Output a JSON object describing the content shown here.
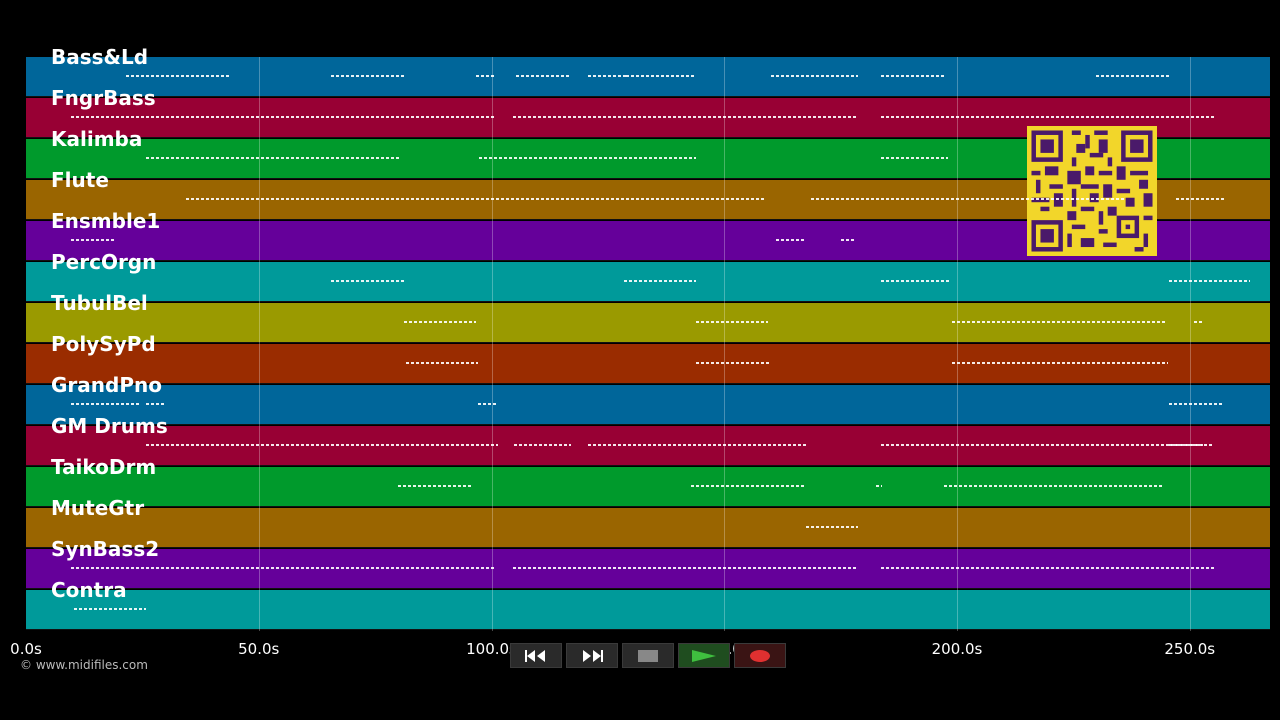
{
  "copyright": "© www.midifiles.com",
  "tracks": [
    {
      "name": "Bass&Ld",
      "color": "#00669a"
    },
    {
      "name": "FngrBass",
      "color": "#980034"
    },
    {
      "name": "Kalimba",
      "color": "#009a2c"
    },
    {
      "name": "Flute",
      "color": "#9a6500"
    },
    {
      "name": "Ensmble1",
      "color": "#65009a"
    },
    {
      "name": "PercOrgn",
      "color": "#009a9a"
    },
    {
      "name": "TubulBel",
      "color": "#9a9a00"
    },
    {
      "name": "PolySyPd",
      "color": "#9a2c00"
    },
    {
      "name": "GrandPno",
      "color": "#00669a"
    },
    {
      "name": "GM Drums",
      "color": "#980034"
    },
    {
      "name": "TaikoDrm",
      "color": "#009a2c"
    },
    {
      "name": "MuteGtr",
      "color": "#9a6500"
    },
    {
      "name": "SynBass2",
      "color": "#65009a"
    },
    {
      "name": "Contra",
      "color": "#009a9a"
    }
  ],
  "time_axis": {
    "ticks": [
      "0.0s",
      "50.0s",
      "100.0s",
      "150.0s",
      "200.0s",
      "250.0s"
    ],
    "tick_values": [
      0,
      50,
      100,
      150,
      200,
      250
    ],
    "max_seconds": 267
  },
  "transport": {
    "rewind": "rewind-icon",
    "fast_forward": "fast-forward-icon",
    "stop": "stop-icon",
    "play": "play-icon",
    "record": "record-icon",
    "play_color": "#3fbf3f",
    "record_color": "#e03030"
  }
}
